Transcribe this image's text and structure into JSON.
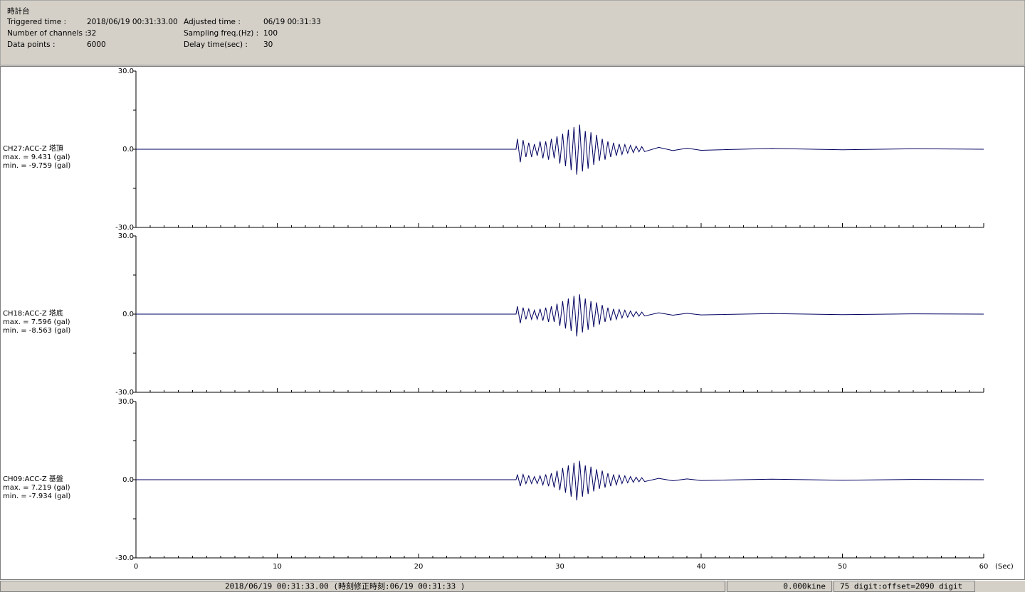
{
  "header": {
    "title": "時計台",
    "fields": [
      {
        "label": "Triggered time :",
        "value": "2018/06/19 00:31:33.00"
      },
      {
        "label": "Number of channels :",
        "value": "32"
      },
      {
        "label": "Data points :",
        "value": "6000"
      },
      {
        "label": "Adjusted time :",
        "value": "06/19 00:31:33"
      },
      {
        "label": "Sampling freq.(Hz) :",
        "value": "100"
      },
      {
        "label": "Delay time(sec) :",
        "value": "30"
      }
    ]
  },
  "chart_data": [
    {
      "type": "line",
      "channel": "CH27:ACC-Z 塔頂",
      "max_text": "max. = 9.431 (gal)",
      "min_text": "min. = -9.759 (gal)",
      "color": "#000060",
      "xlim": [
        0,
        60
      ],
      "ylim": [
        -30,
        30
      ],
      "xticks": [
        0,
        10,
        20,
        30,
        40,
        50,
        60
      ],
      "tick_labels": false,
      "xminor_interval": 1,
      "yticks": [
        {
          "value": 30,
          "label": "30.0"
        },
        {
          "value": 0,
          "label": "0.0"
        },
        {
          "value": -30,
          "label": "-30.0"
        }
      ],
      "yminor": [
        15,
        -15
      ],
      "x": [
        0,
        26.9,
        27.0,
        27.2,
        27.4,
        27.6,
        27.8,
        28.0,
        28.2,
        28.4,
        28.6,
        28.8,
        29.0,
        29.2,
        29.4,
        29.6,
        29.8,
        30.0,
        30.2,
        30.4,
        30.6,
        30.8,
        31.0,
        31.2,
        31.4,
        31.6,
        31.8,
        32.0,
        32.2,
        32.4,
        32.6,
        32.8,
        33.0,
        33.2,
        33.4,
        33.6,
        33.8,
        34.0,
        34.2,
        34.4,
        34.6,
        34.8,
        35.0,
        35.2,
        35.4,
        35.6,
        35.8,
        36.0,
        37,
        38,
        39,
        40,
        45,
        50,
        55,
        60
      ],
      "values": [
        0,
        0,
        4,
        -5,
        3.5,
        -3,
        2.5,
        -3,
        2,
        -2.5,
        3,
        -3.5,
        3,
        -4,
        4,
        -3.5,
        5,
        -5.5,
        6,
        -6.5,
        7.5,
        -8,
        8.5,
        -9.759,
        9.431,
        -8.5,
        7,
        -7.5,
        6.5,
        -6,
        5.5,
        -4.5,
        4,
        -4,
        3,
        -3,
        2.5,
        -2.5,
        2,
        -2,
        1.8,
        -1.5,
        1.5,
        -1.3,
        1.2,
        -1,
        1,
        -0.9,
        0.7,
        -0.5,
        0.4,
        -0.4,
        0.3,
        -0.2,
        0.2,
        0
      ]
    },
    {
      "type": "line",
      "channel": "CH18:ACC-Z 塔底",
      "max_text": "max. = 7.596 (gal)",
      "min_text": "min. = -8.563 (gal)",
      "color": "#000060",
      "xlim": [
        0,
        60
      ],
      "ylim": [
        -30,
        30
      ],
      "xticks": [
        0,
        10,
        20,
        30,
        40,
        50,
        60
      ],
      "tick_labels": false,
      "xminor_interval": 1,
      "yticks": [
        {
          "value": 30,
          "label": "30.0"
        },
        {
          "value": 0,
          "label": "0.0"
        },
        {
          "value": -30,
          "label": "-30.0"
        }
      ],
      "yminor": [
        15,
        -15
      ],
      "x": [
        0,
        26.9,
        27.0,
        27.2,
        27.4,
        27.6,
        27.8,
        28.0,
        28.2,
        28.4,
        28.6,
        28.8,
        29.0,
        29.2,
        29.4,
        29.6,
        29.8,
        30.0,
        30.2,
        30.4,
        30.6,
        30.8,
        31.0,
        31.2,
        31.4,
        31.6,
        31.8,
        32.0,
        32.2,
        32.4,
        32.6,
        32.8,
        33.0,
        33.2,
        33.4,
        33.6,
        33.8,
        34.0,
        34.2,
        34.4,
        34.6,
        34.8,
        35.0,
        35.2,
        35.4,
        35.6,
        35.8,
        36.0,
        37,
        38,
        39,
        40,
        45,
        50,
        55,
        60
      ],
      "values": [
        0,
        0,
        3,
        -3.5,
        2.5,
        -2,
        2,
        -2,
        1.5,
        -2,
        2,
        -2.5,
        2.5,
        -3,
        3,
        -3,
        4,
        -4.5,
        5,
        -5.5,
        6,
        -6.5,
        7,
        -8.563,
        7.596,
        -7,
        6,
        -6,
        5,
        -5,
        4.5,
        -4,
        3.5,
        -3,
        2.5,
        -2.5,
        2,
        -2,
        1.8,
        -1.5,
        1.5,
        -1.2,
        1.2,
        -1,
        1,
        -0.8,
        0.8,
        -0.7,
        0.5,
        -0.4,
        0.3,
        -0.3,
        0.2,
        -0.2,
        0.1,
        0
      ]
    },
    {
      "type": "line",
      "channel": "CH09:ACC-Z 基盤",
      "max_text": "max. = 7.219 (gal)",
      "min_text": "min. = -7.934 (gal)",
      "color": "#000060",
      "xlim": [
        0,
        60
      ],
      "ylim": [
        -30,
        30
      ],
      "xticks": [
        0,
        10,
        20,
        30,
        40,
        50,
        60
      ],
      "tick_labels": true,
      "xminor_interval": 1,
      "x_label": "(Sec)",
      "yticks": [
        {
          "value": 30,
          "label": "30.0"
        },
        {
          "value": 0,
          "label": "0.0"
        },
        {
          "value": -30,
          "label": "-30.0"
        }
      ],
      "yminor": [
        15,
        -15
      ],
      "x": [
        0,
        26.9,
        27.0,
        27.2,
        27.4,
        27.6,
        27.8,
        28.0,
        28.2,
        28.4,
        28.6,
        28.8,
        29.0,
        29.2,
        29.4,
        29.6,
        29.8,
        30.0,
        30.2,
        30.4,
        30.6,
        30.8,
        31.0,
        31.2,
        31.4,
        31.6,
        31.8,
        32.0,
        32.2,
        32.4,
        32.6,
        32.8,
        33.0,
        33.2,
        33.4,
        33.6,
        33.8,
        34.0,
        34.2,
        34.4,
        34.6,
        34.8,
        35.0,
        35.2,
        35.4,
        35.6,
        35.8,
        36.0,
        37,
        38,
        39,
        40,
        45,
        50,
        55,
        60
      ],
      "values": [
        0,
        0,
        2,
        -2.5,
        2,
        -1.5,
        1.5,
        -1.5,
        1.2,
        -1.5,
        1.5,
        -2,
        2,
        -2.5,
        2.5,
        -3,
        3.5,
        -4,
        4.5,
        -5,
        5.5,
        -6.5,
        6.5,
        -7.934,
        7.219,
        -6.5,
        5.5,
        -5.5,
        5,
        -4.5,
        4,
        -3.5,
        3.5,
        -3,
        2.5,
        -2.5,
        2,
        -2,
        1.8,
        -1.5,
        1.5,
        -1.2,
        1.2,
        -1,
        1,
        -0.8,
        0.8,
        -0.7,
        0.5,
        -0.4,
        0.3,
        -0.3,
        0.2,
        -0.2,
        0.1,
        0
      ]
    }
  ],
  "status_bar": [
    "2018/06/19 00:31:33.00  (時刻修正時刻:06/19 00:31:33  )",
    "0.000kine",
    "75 digit:offset=2090 digit"
  ]
}
